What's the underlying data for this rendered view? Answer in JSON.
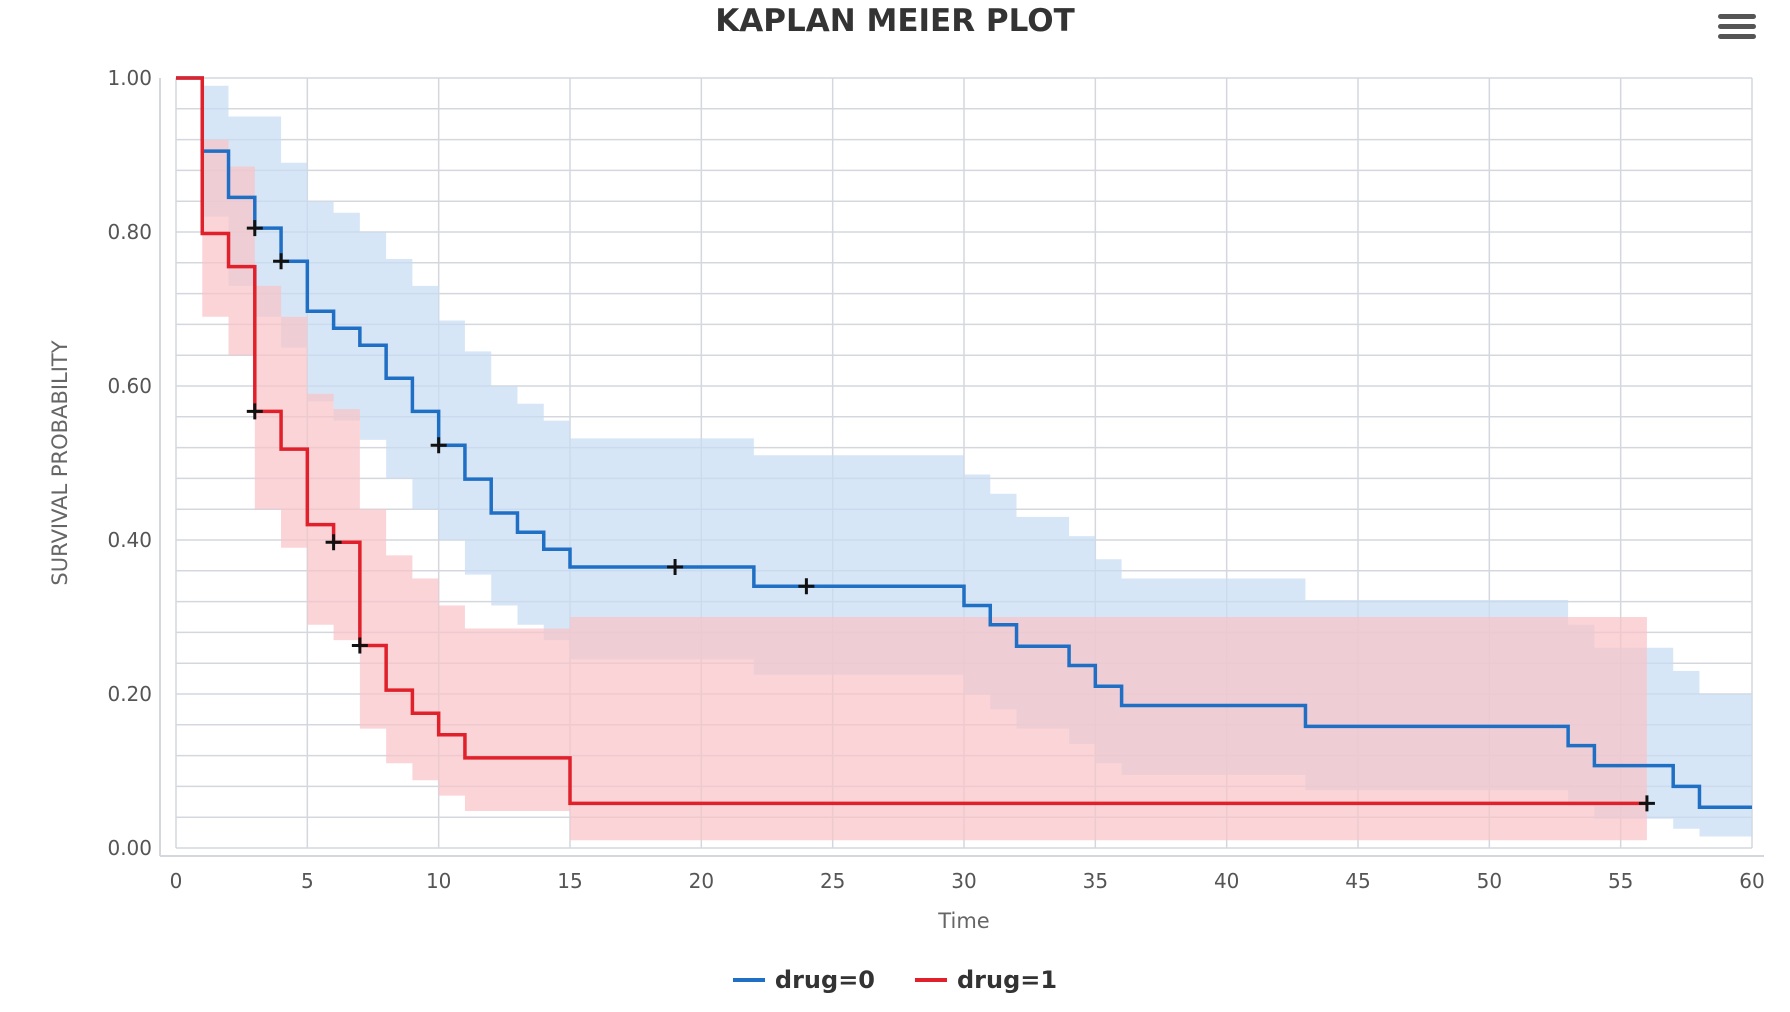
{
  "colors": {
    "drug0": "#1f6fc5",
    "drug1": "#e0202a",
    "drug0_band": "#c7dcf2",
    "drug1_band": "#f8c3c8",
    "grid": "#d4d8de"
  },
  "menu": {
    "icon": "hamburger-menu-icon"
  },
  "chart_data": {
    "type": "line",
    "title": "KAPLAN MEIER PLOT",
    "xlabel": "Time",
    "ylabel": "SURVIVAL PROBABILITY",
    "xlim": [
      0,
      60
    ],
    "ylim": [
      0,
      1
    ],
    "x_ticks": [
      "0",
      "5",
      "10",
      "15",
      "20",
      "25",
      "30",
      "35",
      "40",
      "45",
      "50",
      "55",
      "60"
    ],
    "y_ticks": [
      "0.00",
      "0.20",
      "0.40",
      "0.60",
      "0.80",
      "1.00"
    ],
    "grid": true,
    "legend_position": "bottom-center",
    "series": [
      {
        "name": "drug=0",
        "steps": [
          [
            0,
            1.0
          ],
          [
            1,
            0.905
          ],
          [
            2,
            0.845
          ],
          [
            3,
            0.805
          ],
          [
            4,
            0.762
          ],
          [
            5,
            0.697
          ],
          [
            6,
            0.675
          ],
          [
            7,
            0.653
          ],
          [
            8,
            0.61
          ],
          [
            9,
            0.567
          ],
          [
            10,
            0.523
          ],
          [
            11,
            0.479
          ],
          [
            12,
            0.435
          ],
          [
            13,
            0.41
          ],
          [
            14,
            0.388
          ],
          [
            15,
            0.365
          ],
          [
            22,
            0.34
          ],
          [
            30,
            0.315
          ],
          [
            31,
            0.29
          ],
          [
            32,
            0.262
          ],
          [
            34,
            0.237
          ],
          [
            35,
            0.21
          ],
          [
            36,
            0.185
          ],
          [
            43,
            0.158
          ],
          [
            53,
            0.133
          ],
          [
            54,
            0.107
          ],
          [
            57,
            0.08
          ],
          [
            58,
            0.053
          ],
          [
            60,
            0.053
          ]
        ],
        "ci_upper": [
          [
            0,
            1.0
          ],
          [
            1,
            0.99
          ],
          [
            2,
            0.95
          ],
          [
            4,
            0.89
          ],
          [
            5,
            0.84
          ],
          [
            6,
            0.825
          ],
          [
            7,
            0.8
          ],
          [
            8,
            0.765
          ],
          [
            9,
            0.73
          ],
          [
            10,
            0.685
          ],
          [
            11,
            0.645
          ],
          [
            12,
            0.6
          ],
          [
            13,
            0.577
          ],
          [
            14,
            0.555
          ],
          [
            15,
            0.532
          ],
          [
            22,
            0.51
          ],
          [
            30,
            0.485
          ],
          [
            31,
            0.46
          ],
          [
            32,
            0.43
          ],
          [
            34,
            0.405
          ],
          [
            35,
            0.375
          ],
          [
            36,
            0.35
          ],
          [
            43,
            0.322
          ],
          [
            53,
            0.29
          ],
          [
            54,
            0.26
          ],
          [
            57,
            0.23
          ],
          [
            58,
            0.2
          ],
          [
            60,
            0.2
          ]
        ],
        "ci_lower": [
          [
            0,
            1.0
          ],
          [
            1,
            0.82
          ],
          [
            2,
            0.73
          ],
          [
            3,
            0.69
          ],
          [
            4,
            0.65
          ],
          [
            5,
            0.58
          ],
          [
            6,
            0.555
          ],
          [
            7,
            0.53
          ],
          [
            8,
            0.48
          ],
          [
            9,
            0.44
          ],
          [
            10,
            0.4
          ],
          [
            11,
            0.355
          ],
          [
            12,
            0.315
          ],
          [
            13,
            0.29
          ],
          [
            14,
            0.27
          ],
          [
            15,
            0.245
          ],
          [
            22,
            0.225
          ],
          [
            30,
            0.2
          ],
          [
            31,
            0.18
          ],
          [
            32,
            0.155
          ],
          [
            34,
            0.135
          ],
          [
            35,
            0.11
          ],
          [
            36,
            0.095
          ],
          [
            43,
            0.075
          ],
          [
            53,
            0.055
          ],
          [
            54,
            0.038
          ],
          [
            57,
            0.025
          ],
          [
            58,
            0.015
          ],
          [
            60,
            0.015
          ]
        ],
        "censored": [
          [
            3,
            0.805
          ],
          [
            4,
            0.762
          ],
          [
            10,
            0.523
          ],
          [
            19,
            0.365
          ],
          [
            24,
            0.34
          ]
        ]
      },
      {
        "name": "drug=1",
        "steps": [
          [
            0,
            1.0
          ],
          [
            1,
            0.798
          ],
          [
            2,
            0.755
          ],
          [
            3,
            0.567
          ],
          [
            4,
            0.518
          ],
          [
            5,
            0.42
          ],
          [
            6,
            0.397
          ],
          [
            7,
            0.263
          ],
          [
            8,
            0.205
          ],
          [
            9,
            0.175
          ],
          [
            10,
            0.147
          ],
          [
            11,
            0.117
          ],
          [
            15,
            0.058
          ],
          [
            56,
            0.058
          ]
        ],
        "ci_upper": [
          [
            0,
            1.0
          ],
          [
            1,
            0.92
          ],
          [
            2,
            0.885
          ],
          [
            3,
            0.73
          ],
          [
            4,
            0.69
          ],
          [
            5,
            0.59
          ],
          [
            6,
            0.57
          ],
          [
            7,
            0.44
          ],
          [
            8,
            0.38
          ],
          [
            9,
            0.35
          ],
          [
            10,
            0.315
          ],
          [
            11,
            0.285
          ],
          [
            15,
            0.3
          ],
          [
            56,
            0.3
          ]
        ],
        "ci_lower": [
          [
            0,
            1.0
          ],
          [
            1,
            0.69
          ],
          [
            2,
            0.64
          ],
          [
            3,
            0.44
          ],
          [
            4,
            0.39
          ],
          [
            5,
            0.29
          ],
          [
            6,
            0.27
          ],
          [
            7,
            0.155
          ],
          [
            8,
            0.11
          ],
          [
            9,
            0.088
          ],
          [
            10,
            0.068
          ],
          [
            11,
            0.048
          ],
          [
            15,
            0.01
          ],
          [
            56,
            0.01
          ]
        ],
        "censored": [
          [
            3,
            0.567
          ],
          [
            6,
            0.397
          ],
          [
            7,
            0.263
          ],
          [
            56,
            0.058
          ]
        ]
      }
    ]
  }
}
